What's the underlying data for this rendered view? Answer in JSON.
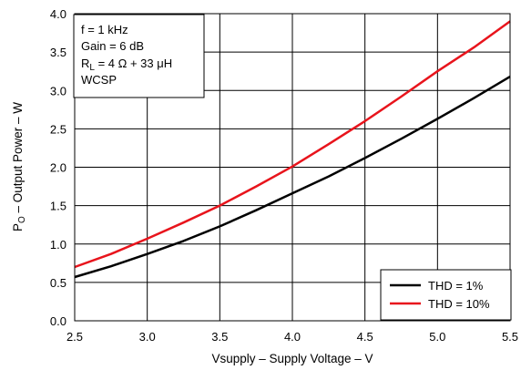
{
  "chart_data": {
    "type": "line",
    "xlabel": "Vsupply – Supply Voltage – V",
    "ylabel_main": "P",
    "ylabel_sub": "O",
    "ylabel_rest": " – Output Power – W",
    "xlim": [
      2.5,
      5.5
    ],
    "ylim": [
      0,
      4
    ],
    "xticks": [
      "2.5",
      "3.0",
      "3.5",
      "4.0",
      "4.5",
      "5.0",
      "5.5"
    ],
    "yticks": [
      "0.0",
      "0.5",
      "1.0",
      "1.5",
      "2.0",
      "2.5",
      "3.0",
      "3.5",
      "4.0"
    ],
    "grid": true,
    "legend_position": "bottom-right",
    "conditions": {
      "line1": "f = 1 kHz",
      "line2": "Gain = 6 dB",
      "line3_main": "R",
      "line3_sub": "L",
      "line3_rest": " = 4 Ω + 33 μH",
      "line4": "WCSP"
    },
    "series": [
      {
        "name": "THD = 1%",
        "color": "#000000",
        "x": [
          2.5,
          2.75,
          3.0,
          3.25,
          3.5,
          3.75,
          4.0,
          4.25,
          4.5,
          4.75,
          5.0,
          5.25,
          5.5
        ],
        "y": [
          0.57,
          0.71,
          0.87,
          1.04,
          1.23,
          1.44,
          1.66,
          1.88,
          2.12,
          2.37,
          2.63,
          2.9,
          3.18
        ]
      },
      {
        "name": "THD = 10%",
        "color": "#e8141c",
        "x": [
          2.5,
          2.75,
          3.0,
          3.25,
          3.5,
          3.75,
          4.0,
          4.25,
          4.5,
          4.75,
          5.0,
          5.25,
          5.5
        ],
        "y": [
          0.7,
          0.87,
          1.07,
          1.28,
          1.5,
          1.75,
          2.01,
          2.3,
          2.6,
          2.92,
          3.25,
          3.56,
          3.9
        ]
      }
    ]
  }
}
